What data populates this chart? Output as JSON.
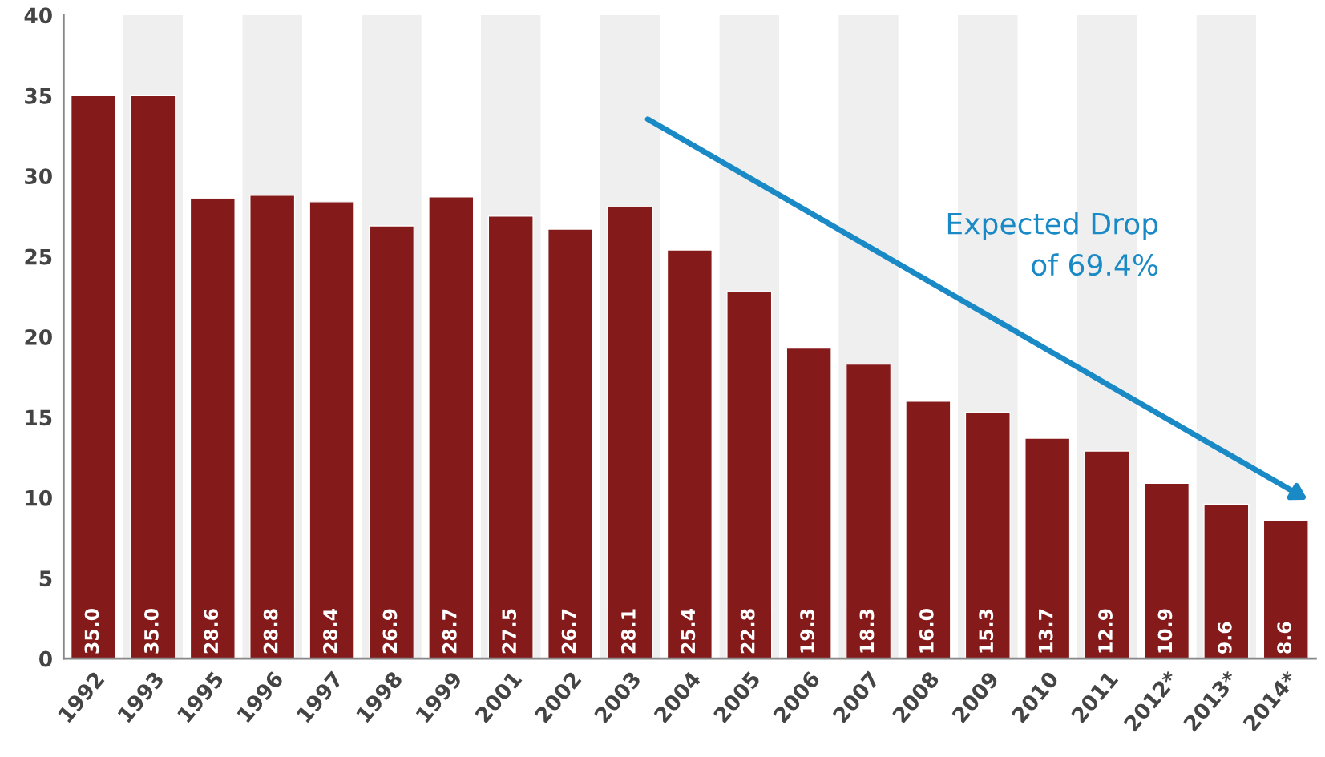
{
  "chart_data": {
    "type": "bar",
    "categories": [
      "1992",
      "1993",
      "1995",
      "1996",
      "1997",
      "1998",
      "1999",
      "2001",
      "2002",
      "2003",
      "2004",
      "2005",
      "2006",
      "2007",
      "2008",
      "2009",
      "2010",
      "2011",
      "2012*",
      "2013*",
      "2014*"
    ],
    "values": [
      35.0,
      35.0,
      28.6,
      28.8,
      28.4,
      26.9,
      28.7,
      27.5,
      26.7,
      28.1,
      25.4,
      22.8,
      19.3,
      18.3,
      16.0,
      15.3,
      13.7,
      12.9,
      10.9,
      9.6,
      8.6
    ],
    "color": "#841a1a",
    "value_labels": [
      "35.0",
      "35.0",
      "28.6",
      "28.8",
      "28.4",
      "26.9",
      "28.7",
      "27.5",
      "26.7",
      "28.1",
      "25.4",
      "22.8",
      "19.3",
      "18.3",
      "16.0",
      "15.3",
      "13.7",
      "12.9",
      "10.9",
      "9.6",
      "8.6"
    ],
    "ylim": [
      0,
      40
    ],
    "yticks": [
      0,
      5,
      10,
      15,
      20,
      25,
      30,
      35,
      40
    ],
    "bands": [
      {
        "axis": "x",
        "from": "1993",
        "to": "1993",
        "color": "#efefef"
      },
      {
        "axis": "x",
        "from": "1996",
        "to": "1996",
        "color": "#efefef"
      },
      {
        "axis": "x",
        "from": "1998",
        "to": "1998",
        "color": "#efefef"
      },
      {
        "axis": "x",
        "from": "2001",
        "to": "2001",
        "color": "#efefef"
      },
      {
        "axis": "x",
        "from": "2003",
        "to": "2003",
        "color": "#efefef"
      },
      {
        "axis": "x",
        "from": "2005",
        "to": "2005",
        "color": "#efefef"
      },
      {
        "axis": "x",
        "from": "2007",
        "to": "2007",
        "color": "#efefef"
      },
      {
        "axis": "x",
        "from": "2009",
        "to": "2009",
        "color": "#efefef"
      },
      {
        "axis": "x",
        "from": "2011",
        "to": "2011",
        "color": "#efefef"
      },
      {
        "axis": "x",
        "from": "2013*",
        "to": "2013*",
        "color": "#efefef"
      }
    ],
    "grid": false,
    "legend": false,
    "annotations": [
      "Expected Drop\nof 69.4%"
    ]
  }
}
